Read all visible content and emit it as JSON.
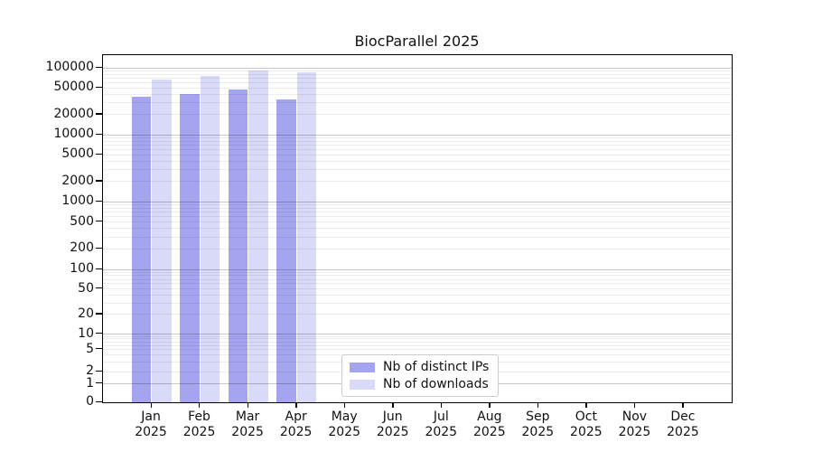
{
  "chart_data": {
    "type": "bar",
    "title": "BiocParallel 2025",
    "categories": [
      "Jan",
      "Feb",
      "Mar",
      "Apr",
      "May",
      "Jun",
      "Jul",
      "Aug",
      "Sep",
      "Oct",
      "Nov",
      "Dec"
    ],
    "year_label": "2025",
    "series": [
      {
        "name": "Nb of distinct IPs",
        "color": "#a4a4ef",
        "values": [
          36500,
          41000,
          47500,
          33500,
          null,
          null,
          null,
          null,
          null,
          null,
          null,
          null
        ]
      },
      {
        "name": "Nb of downloads",
        "color": "#d9d9f8",
        "values": [
          66000,
          75500,
          90000,
          86000,
          null,
          null,
          null,
          null,
          null,
          null,
          null,
          null
        ]
      }
    ],
    "yticks": [
      100000,
      50000,
      20000,
      10000,
      5000,
      2000,
      1000,
      500,
      200,
      100,
      50,
      20,
      10,
      5,
      2,
      1,
      0
    ],
    "xlabel": "",
    "ylabel": "",
    "yscale": "log-like with 0 baseline",
    "ylim": [
      0,
      130000
    ],
    "grid": "horizontal, major lines at powers of 10, faint minor lines at 2-9 per decade, drawn above bars",
    "legend_position": "bottom-center"
  },
  "colors": {
    "background": "#ffffff",
    "axis": "#000000",
    "grid_major": "rgba(0,0,0,0.22)",
    "grid_minor": "rgba(0,0,0,0.07)",
    "legend_border": "#cccccc"
  }
}
